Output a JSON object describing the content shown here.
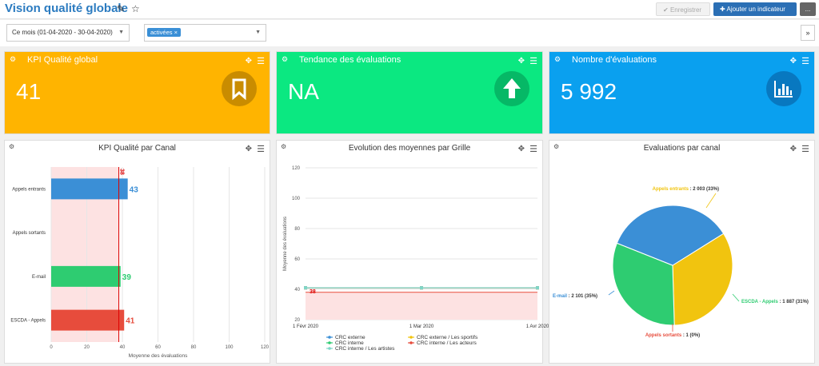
{
  "header": {
    "title": "Vision qualité globale",
    "save_label": "Enregistrer",
    "add_label": "Ajouter un indicateur",
    "more_label": "..."
  },
  "filters": {
    "period": "Ce mois (01-04-2020 - 30-04-2020)",
    "tag": "activées",
    "tag_remove": "×"
  },
  "kpis": [
    {
      "label": "KPI Qualité global",
      "value": "41",
      "color": "#ffb400",
      "icon": "bookmark-icon"
    },
    {
      "label": "Tendance des évaluations",
      "value": "NA",
      "color": "#0be881",
      "icon": "arrow-up-icon"
    },
    {
      "label": "Nombre d'évaluations",
      "value": "5 992",
      "color": "#0aa0ef",
      "icon": "bar-chart-icon"
    }
  ],
  "panels": {
    "canal": "KPI Qualité par Canal",
    "evolution": "Evolution des moyennes par Grille",
    "pie": "Evaluations par canal"
  },
  "chart_data": [
    {
      "type": "bar",
      "title": "KPI Qualité par Canal",
      "categories": [
        "Appels entrants",
        "Appels sortants",
        "E-mail",
        "ESCDA - Appels"
      ],
      "values": [
        43,
        null,
        39,
        41
      ],
      "colors": [
        "#3b8fd6",
        "#3b8fd6",
        "#2ecc71",
        "#e74c3c"
      ],
      "xlabel": "Moyenne des évaluations",
      "xlim": [
        0,
        120
      ],
      "xticks": [
        0,
        20,
        40,
        60,
        80,
        100,
        120
      ],
      "threshold": 38,
      "threshold_label": "38",
      "orientation": "horizontal"
    },
    {
      "type": "line",
      "title": "Evolution des moyennes par Grille",
      "x": [
        "1 Févr 2020",
        "1 Mar 2020",
        "1 Avr 2020"
      ],
      "ylabel": "Moyenne des évaluations",
      "ylim": [
        20,
        120
      ],
      "yticks": [
        20,
        40,
        60,
        80,
        100,
        120
      ],
      "threshold": 38,
      "threshold_label": "38",
      "series": [
        {
          "name": "CRC externe",
          "values": [
            41,
            41,
            41
          ],
          "color": "#3b8fd6"
        },
        {
          "name": "CRC externe / Les sportifs",
          "values": [
            41,
            41,
            41
          ],
          "color": "#f1c40f"
        },
        {
          "name": "CRC interne",
          "values": [
            41,
            41,
            41
          ],
          "color": "#2ecc71"
        },
        {
          "name": "CRC interne / Les acteurs",
          "values": [
            41,
            41,
            41
          ],
          "color": "#e74c3c"
        },
        {
          "name": "CRC interne / Les artistes",
          "values": [
            41,
            41,
            41
          ],
          "color": "#7fd6c8"
        }
      ]
    },
    {
      "type": "pie",
      "title": "Evaluations par canal",
      "slices": [
        {
          "name": "Appels entrants",
          "value": 2003,
          "pct": "33%",
          "color": "#f1c40f",
          "label": "2 003"
        },
        {
          "name": "ESCDA - Appels",
          "value": 1887,
          "pct": "31%",
          "color": "#2ecc71",
          "label": "1 887"
        },
        {
          "name": "Appels sortants",
          "value": 1,
          "pct": "0%",
          "color": "#e74c3c",
          "label": "1"
        },
        {
          "name": "E-mail",
          "value": 2101,
          "pct": "35%",
          "color": "#3b8fd6",
          "label": "2 101"
        }
      ]
    }
  ]
}
